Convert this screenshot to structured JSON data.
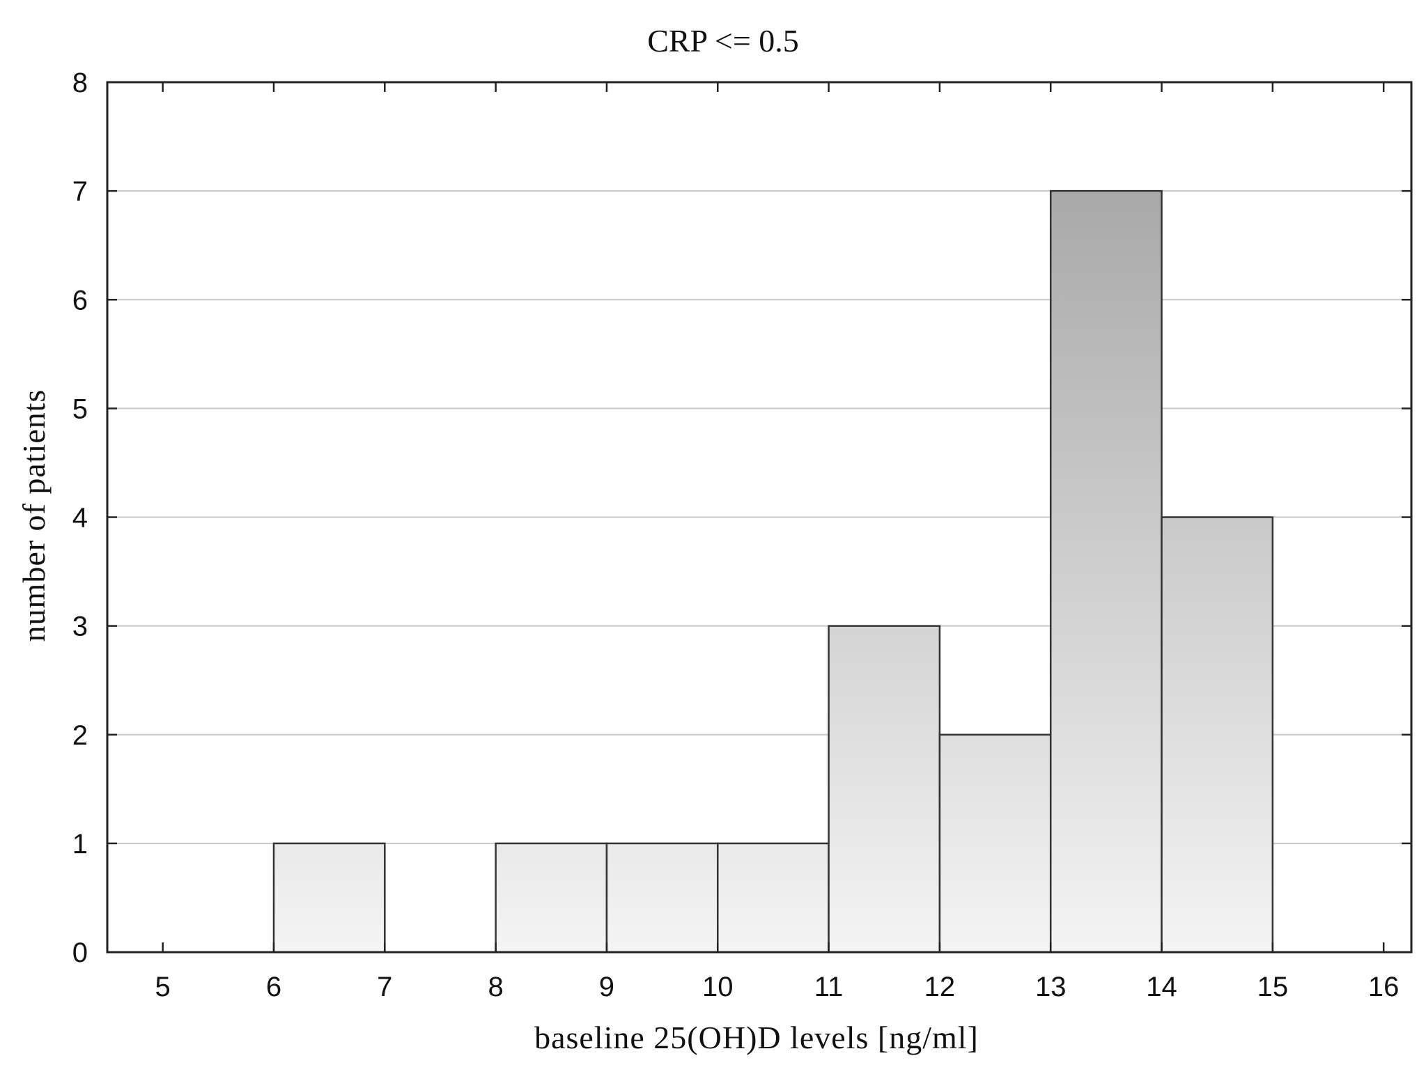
{
  "chart_data": {
    "type": "bar",
    "subtype": "histogram",
    "title": "CRP <= 0.5",
    "xlabel": "baseline 25(OH)D levels [ng/ml]",
    "ylabel": "number of patients",
    "xlim": [
      4.5,
      16.25
    ],
    "ylim": [
      0,
      8
    ],
    "x_ticks": [
      5,
      6,
      7,
      8,
      9,
      10,
      11,
      12,
      13,
      14,
      15,
      16
    ],
    "y_ticks": [
      0,
      1,
      2,
      3,
      4,
      5,
      6,
      7,
      8
    ],
    "grid": "horizontal",
    "bins": [
      {
        "start": 6,
        "end": 7,
        "count": 1
      },
      {
        "start": 8,
        "end": 9,
        "count": 1
      },
      {
        "start": 9,
        "end": 10,
        "count": 1
      },
      {
        "start": 10,
        "end": 11,
        "count": 1
      },
      {
        "start": 11,
        "end": 12,
        "count": 3
      },
      {
        "start": 12,
        "end": 13,
        "count": 2
      },
      {
        "start": 13,
        "end": 14,
        "count": 7
      },
      {
        "start": 14,
        "end": 15,
        "count": 4
      }
    ],
    "colors": {
      "bar_fill_light": "#f4f4f4",
      "bar_fill_dark": "#a9a9a9",
      "bar_stroke": "#333333",
      "grid": "#c8c8c8"
    }
  }
}
